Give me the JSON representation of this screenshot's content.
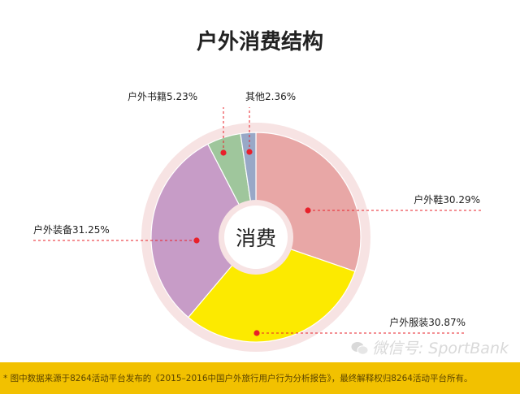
{
  "chart_data": {
    "type": "pie",
    "title": "户外消费结构",
    "center_label": "消费",
    "slices": [
      {
        "label": "户外鞋30.29%",
        "value": 30.29,
        "color": "#e8a7a6"
      },
      {
        "label": "户外服装30.87%",
        "value": 30.87,
        "color": "#fcea00"
      },
      {
        "label": "户外装备31.25%",
        "value": 31.25,
        "color": "#c79cc7"
      },
      {
        "label": "户外书籍5.23%",
        "value": 5.23,
        "color": "#9fc69c"
      },
      {
        "label": "其他2.36%",
        "value": 2.36,
        "color": "#98a8c7"
      }
    ],
    "ring_color": "#f7e3e3",
    "leader_color": "#e8202a"
  },
  "footer": {
    "note": "* 图中数据来源于8264活动平台发布的《2015–2016中国户外旅行用户行为分析报告》，最终解释权归8264活动平台所有。",
    "watermark": "微信号: SportBank"
  }
}
